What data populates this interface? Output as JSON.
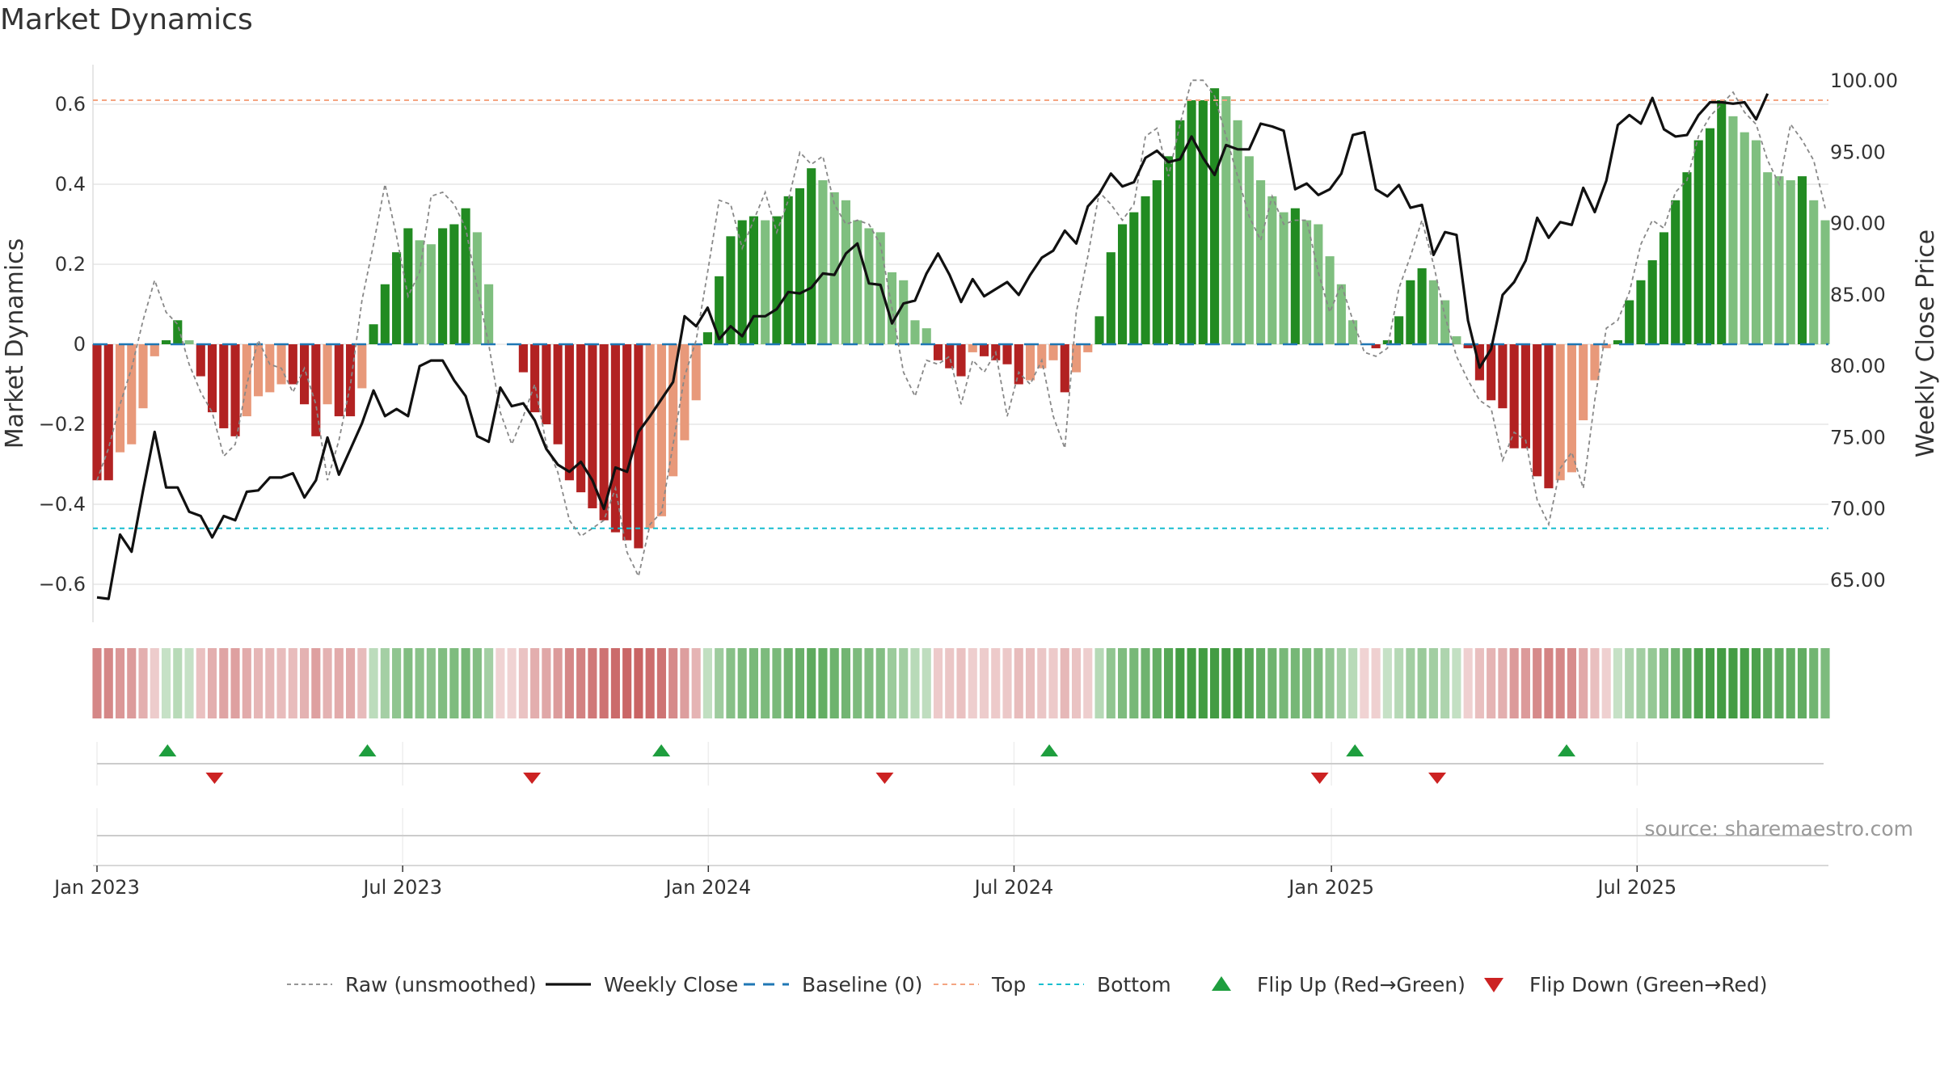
{
  "chart_data": {
    "type": "bar",
    "title": "Market Dynamics",
    "ylabel_left": "Market Dynamics",
    "ylabel_right": "Weekly Close Price",
    "ylim_left": [
      -0.69,
      0.71
    ],
    "ylim_right": [
      61.8,
      103.1
    ],
    "left_ticks": [
      "0.6",
      "0.4",
      "0.2",
      "0",
      "−0.2",
      "−0.4",
      "−0.6"
    ],
    "right_ticks": [
      "100.00",
      "95.00",
      "90.00",
      "85.00",
      "80.00",
      "75.00",
      "70.00",
      "65.00"
    ],
    "x_ticks": [
      "Jan 2023",
      "Jul 2023",
      "Jan 2024",
      "Jul 2024",
      "Jan 2025",
      "Jul 2025"
    ],
    "x_start": "2023-01-02",
    "x_end": "2025-10-27",
    "top_line": 0.61,
    "bottom_line": -0.46,
    "baseline": 0,
    "bar_values": [
      -0.34,
      -0.34,
      -0.27,
      -0.25,
      -0.16,
      -0.03,
      0.01,
      0.06,
      0.01,
      -0.08,
      -0.17,
      -0.21,
      -0.23,
      -0.18,
      -0.13,
      -0.12,
      -0.1,
      -0.1,
      -0.15,
      -0.23,
      -0.15,
      -0.18,
      -0.18,
      -0.11,
      0.05,
      0.15,
      0.23,
      0.29,
      0.26,
      0.25,
      0.29,
      0.3,
      0.34,
      0.28,
      0.15,
      0.0,
      0.0,
      -0.07,
      -0.17,
      -0.2,
      -0.25,
      -0.34,
      -0.37,
      -0.41,
      -0.44,
      -0.47,
      -0.49,
      -0.51,
      -0.46,
      -0.43,
      -0.33,
      -0.24,
      -0.14,
      0.03,
      0.17,
      0.27,
      0.31,
      0.32,
      0.31,
      0.32,
      0.37,
      0.39,
      0.44,
      0.41,
      0.38,
      0.36,
      0.31,
      0.29,
      0.28,
      0.18,
      0.16,
      0.06,
      0.04,
      -0.04,
      -0.06,
      -0.08,
      -0.02,
      -0.03,
      -0.04,
      -0.05,
      -0.1,
      -0.09,
      -0.06,
      -0.04,
      -0.12,
      -0.07,
      -0.02,
      0.07,
      0.23,
      0.3,
      0.33,
      0.37,
      0.41,
      0.47,
      0.56,
      0.61,
      0.61,
      0.64,
      0.62,
      0.56,
      0.47,
      0.41,
      0.37,
      0.33,
      0.34,
      0.31,
      0.3,
      0.22,
      0.15,
      0.06,
      0.0,
      -0.01,
      0.01,
      0.07,
      0.16,
      0.19,
      0.16,
      0.11,
      0.02,
      -0.01,
      -0.09,
      -0.14,
      -0.16,
      -0.26,
      -0.26,
      -0.33,
      -0.36,
      -0.34,
      -0.32,
      -0.19,
      -0.09,
      -0.01,
      0.01,
      0.11,
      0.16,
      0.21,
      0.28,
      0.36,
      0.43,
      0.51,
      0.54,
      0.61,
      0.57,
      0.53,
      0.51,
      0.43,
      0.42,
      0.41,
      0.42,
      0.36,
      0.31
    ],
    "bar_colors": {
      "pos_strong": "#228b22",
      "pos_weak": "#7fbf7f",
      "neg_strong": "#b22222",
      "neg_weak": "#e8997a"
    },
    "raw_values": [
      -0.34,
      -0.26,
      -0.15,
      -0.06,
      0.06,
      0.16,
      0.08,
      0.05,
      -0.05,
      -0.12,
      -0.17,
      -0.28,
      -0.25,
      -0.1,
      0.01,
      -0.05,
      -0.06,
      -0.12,
      -0.06,
      -0.15,
      -0.34,
      -0.24,
      -0.1,
      0.11,
      0.25,
      0.4,
      0.27,
      0.12,
      0.18,
      0.37,
      0.38,
      0.35,
      0.29,
      0.14,
      0.0,
      -0.17,
      -0.25,
      -0.18,
      -0.1,
      -0.25,
      -0.32,
      -0.44,
      -0.48,
      -0.46,
      -0.44,
      -0.36,
      -0.52,
      -0.58,
      -0.45,
      -0.42,
      -0.25,
      -0.08,
      0.01,
      0.18,
      0.36,
      0.35,
      0.24,
      0.31,
      0.38,
      0.28,
      0.36,
      0.48,
      0.45,
      0.47,
      0.35,
      0.3,
      0.31,
      0.3,
      0.25,
      0.09,
      -0.07,
      -0.13,
      -0.04,
      -0.05,
      -0.03,
      -0.15,
      -0.04,
      -0.07,
      -0.02,
      -0.18,
      -0.07,
      -0.1,
      -0.04,
      -0.18,
      -0.26,
      0.08,
      0.22,
      0.38,
      0.35,
      0.31,
      0.35,
      0.52,
      0.54,
      0.42,
      0.55,
      0.66,
      0.66,
      0.62,
      0.52,
      0.42,
      0.32,
      0.26,
      0.37,
      0.3,
      0.31,
      0.31,
      0.18,
      0.08,
      0.15,
      0.06,
      -0.02,
      -0.03,
      -0.01,
      0.14,
      0.22,
      0.31,
      0.2,
      0.07,
      -0.03,
      -0.09,
      -0.14,
      -0.16,
      -0.29,
      -0.22,
      -0.24,
      -0.39,
      -0.45,
      -0.31,
      -0.27,
      -0.36,
      -0.14,
      0.04,
      0.06,
      0.13,
      0.25,
      0.31,
      0.29,
      0.38,
      0.41,
      0.52,
      0.57,
      0.6,
      0.63,
      0.58,
      0.55,
      0.46,
      0.4,
      0.55,
      0.51,
      0.46,
      0.34
    ],
    "close_values": [
      63.8,
      63.7,
      68.2,
      67.0,
      71.3,
      75.4,
      71.5,
      71.5,
      69.8,
      69.5,
      68.0,
      69.5,
      69.2,
      71.2,
      71.3,
      72.2,
      72.2,
      72.5,
      70.8,
      72.0,
      75.0,
      72.4,
      74.2,
      76.0,
      78.3,
      76.5,
      77.0,
      76.5,
      80.0,
      80.4,
      80.4,
      79.0,
      77.9,
      75.1,
      74.7,
      78.5,
      77.2,
      77.4,
      76.2,
      74.2,
      73.1,
      72.6,
      73.3,
      72.0,
      70.0,
      72.9,
      72.6,
      75.4,
      76.5,
      77.7,
      78.9,
      83.5,
      82.8,
      84.1,
      81.9,
      82.8,
      82.1,
      83.5,
      83.5,
      84.0,
      85.2,
      85.1,
      85.5,
      86.5,
      86.4,
      87.9,
      88.6,
      85.8,
      85.7,
      83.0,
      84.4,
      84.6,
      86.5,
      87.9,
      86.4,
      84.5,
      86.1,
      84.9,
      85.4,
      85.9,
      85.0,
      86.4,
      87.6,
      88.1,
      89.5,
      88.6,
      91.2,
      92.1,
      93.5,
      92.6,
      92.9,
      94.6,
      95.1,
      94.3,
      94.5,
      96.1,
      94.6,
      93.4,
      95.5,
      95.2,
      95.2,
      97.0,
      96.8,
      96.5,
      92.4,
      92.8,
      92.0,
      92.4,
      93.5,
      96.2,
      96.4,
      92.4,
      91.9,
      92.7,
      91.1,
      91.3,
      87.8,
      89.4,
      89.2,
      83.2,
      79.9,
      81.2,
      85.0,
      85.9,
      87.4,
      90.4,
      89.0,
      90.1,
      89.9,
      92.5,
      90.8,
      93.0,
      96.9,
      97.6,
      97.0,
      98.8,
      96.6,
      96.1,
      96.2,
      97.6,
      98.5,
      98.5,
      98.4,
      98.5,
      97.3,
      99.1
    ],
    "regime_strip": "first column uses bar_values sign/strength",
    "flip_up_dates": [
      "2023-02-13",
      "2023-06-12",
      "2023-12-04",
      "2024-07-22",
      "2025-01-20",
      "2025-05-26"
    ],
    "flip_down_dates": [
      "2023-03-13",
      "2023-09-18",
      "2024-04-15",
      "2024-12-30",
      "2025-03-10"
    ],
    "source": "source: sharemaestro.com",
    "legend": [
      "Raw (unsmoothed)",
      "Weekly Close",
      "Baseline (0)",
      "Top",
      "Bottom",
      "Flip Up (Red→Green)",
      "Flip Down (Green→Red)"
    ],
    "colors": {
      "raw": "#888888",
      "close": "#111111",
      "baseline": "#1f77b4",
      "top": "#f4a582",
      "bottom": "#17becf",
      "flip_up": "#1e9e3e",
      "flip_down": "#cc2222",
      "grid": "#e6e6e6"
    },
    "grid": true,
    "legend_position": "bottom-center"
  }
}
